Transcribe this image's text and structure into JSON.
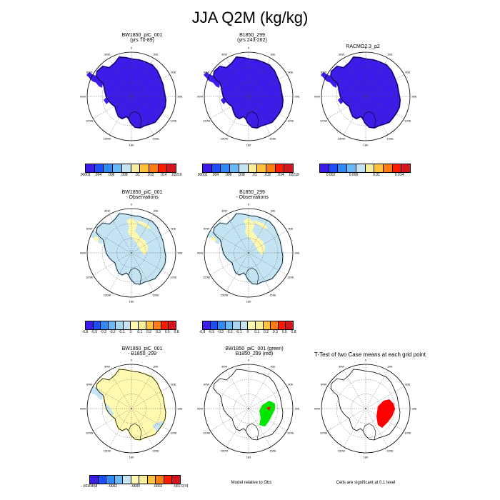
{
  "figure_title": "JJA Q2M (kg/kg)",
  "panels": [
    {
      "title_line1": "BW1850_piC_001",
      "title_line2": "(yrs 70-89)",
      "fill": "mean"
    },
    {
      "title_line1": "B1850_299",
      "title_line2": "(yrs 243-262)",
      "fill": "mean"
    },
    {
      "title_line1": "RACMO2.3_p2",
      "title_line2": "",
      "fill": "mean"
    },
    {
      "title_line1": "BW1850_piC_001",
      "title_line2": "- Observations",
      "fill": "diffobs"
    },
    {
      "title_line1": "B1850_299",
      "title_line2": "- Observations",
      "fill": "diffobs"
    },
    {
      "title_line1": "BW1850_piC_001",
      "title_line2": "- B1850_299",
      "fill": "diffcase"
    },
    {
      "title_line1": "BW1850_piC_001 (green)",
      "title_line2": "B1850_299 (red)",
      "fill": "compare"
    },
    {
      "title_line1": "T-Test of two Case means at each grid point",
      "title_line2": "",
      "fill": "ttest"
    }
  ],
  "map_labels": {
    "lon_top": "0",
    "lon_bottom": "180",
    "lon_right": "90E",
    "lon_left": "90W",
    "lon_30e": "30E",
    "lon_60e": "60E",
    "lon_120e": "120E",
    "lon_150e": "150E",
    "lon_30w": "30W",
    "lon_60w": "60W",
    "lon_120w": "120W",
    "lon_150w": "150W"
  },
  "legends": {
    "mean_1": {
      "colors": [
        "#3d1be8",
        "#1c4dff",
        "#2e8af5",
        "#6ab8f5",
        "#c4e3f3",
        "#f6ee9c",
        "#ffc23a",
        "#ff7c10",
        "#ff1a00",
        "#d2171e"
      ],
      "labels": [
        ".00001",
        ".004",
        ".006",
        ".008",
        ".01",
        ".012",
        ".014",
        ".02216"
      ]
    },
    "mean_2": {
      "colors": [
        "#3d1be8",
        "#1c4dff",
        "#2e8af5",
        "#6ab8f5",
        "#c4e3f3",
        "#f6ee9c",
        "#ffc23a",
        "#ff7c10",
        "#ff1a00",
        "#d2171e"
      ],
      "labels": [
        ".00001",
        ".004",
        ".006",
        ".008",
        ".01",
        ".012",
        ".014",
        ".02219"
      ]
    },
    "mean_3": {
      "colors": [
        "#3d1be8",
        "#1c4dff",
        "#2e8af5",
        "#6ab8f5",
        "#c4e3f3",
        "#f6ee9c",
        "#ffc23a",
        "#ff7c10",
        "#ff1a00",
        "#d2171e"
      ],
      "labels": [
        "0.002",
        "0.006",
        "0.01",
        "0.014"
      ]
    },
    "diff_obs": {
      "colors": [
        "#3d1be8",
        "#1c4dff",
        "#2e8af5",
        "#6ab8f5",
        "#a8d6ee",
        "#c4e3f3",
        "#fff9b0",
        "#f6ee9c",
        "#ffc23a",
        "#ff7c10",
        "#ff1a00",
        "#d2171e"
      ],
      "labels": [
        "-0.8",
        "-0.5",
        "-0.3",
        "-0.2",
        "-0.1",
        "0",
        "0.1",
        "0.2",
        "0.3",
        "0.5",
        "0.8"
      ]
    },
    "diff_case": {
      "colors": [
        "#3d1be8",
        "#1c4dff",
        "#2e8af5",
        "#6ab8f5",
        "#c4e3f3",
        "#fff9b0",
        "#f6ee9c",
        "#ffc23a",
        "#ff7c10",
        "#ff1a00",
        "#d2171e"
      ],
      "labels": [
        "-.0020468",
        "-.0002",
        "-.0000",
        ".0002",
        ".0017374"
      ]
    }
  },
  "footnotes": {
    "compare": "Model relative to Obs",
    "ttest": "Cells are significant at 0.1 level"
  }
}
